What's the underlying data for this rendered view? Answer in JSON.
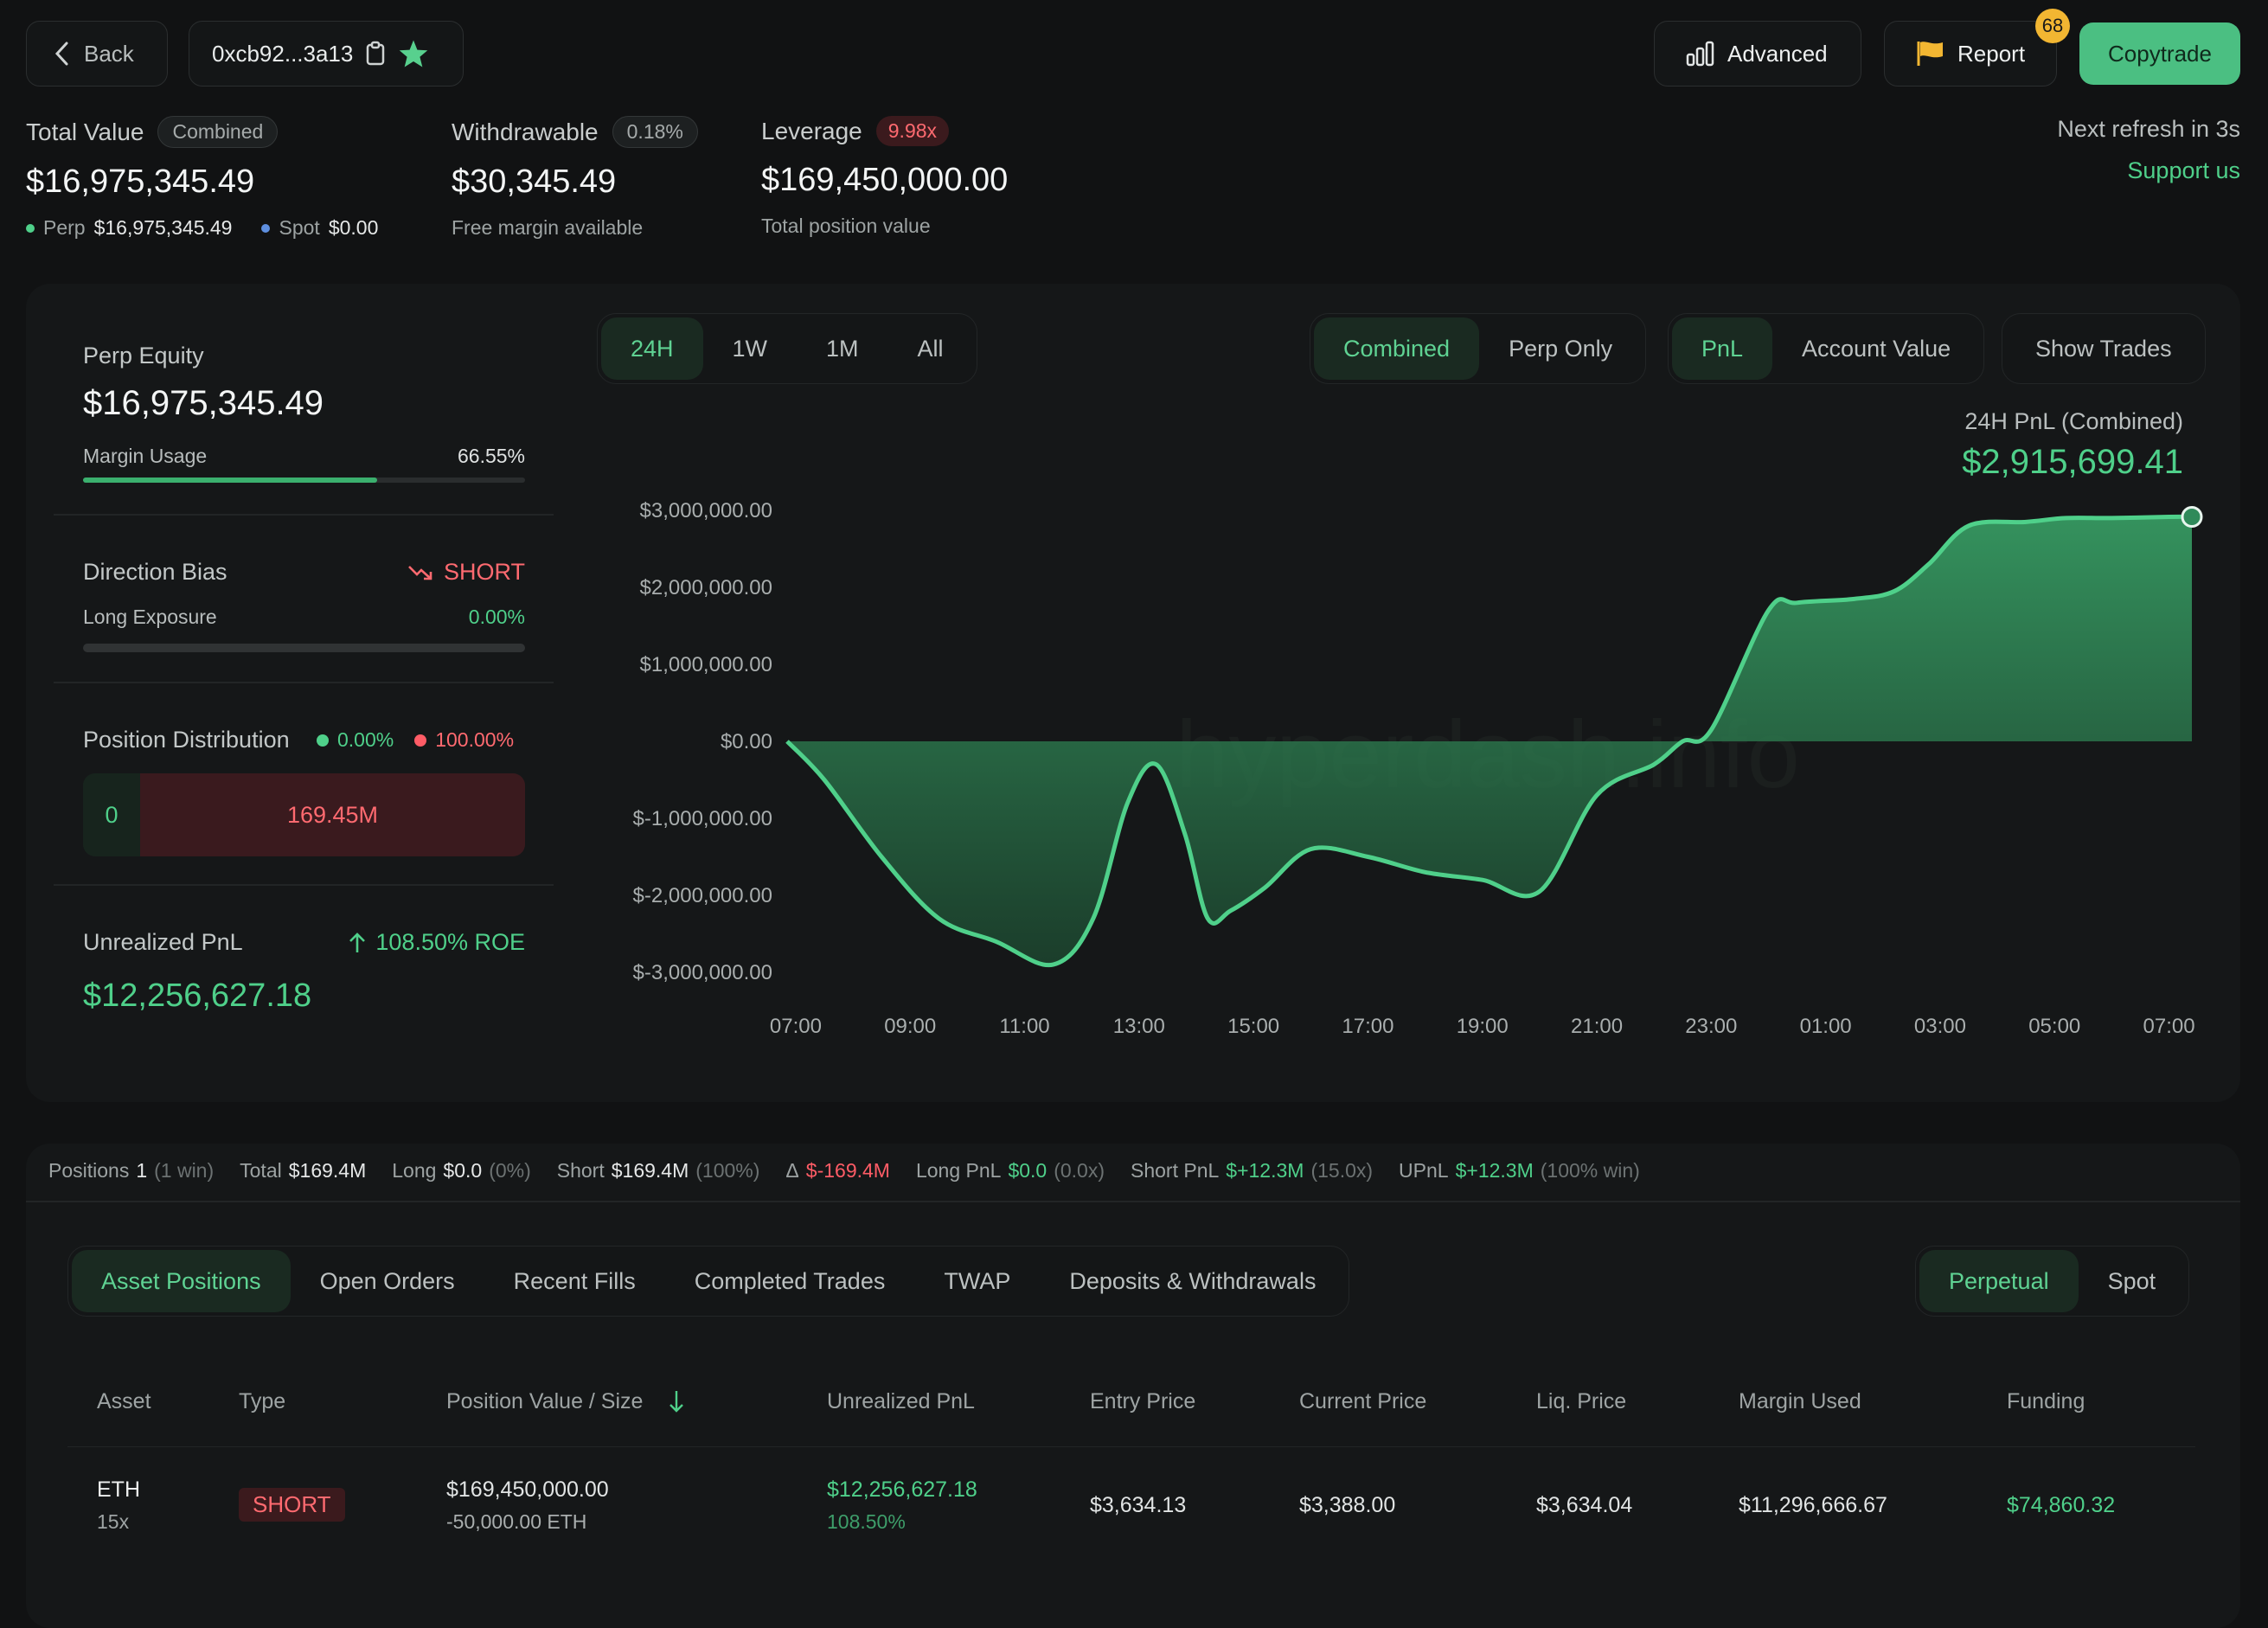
{
  "header": {
    "back_label": "Back",
    "address": "0xcb92...3a13",
    "advanced_label": "Advanced",
    "report_label": "Report",
    "report_badge": "68",
    "copytrade_label": "Copytrade",
    "refresh_text": "Next refresh in 3s",
    "support_label": "Support us"
  },
  "summary": {
    "total_value_label": "Total Value",
    "total_value_pill": "Combined",
    "total_value": "$16,975,345.49",
    "perp_label": "Perp",
    "perp_value": "$16,975,345.49",
    "spot_label": "Spot",
    "spot_value": "$0.00",
    "withdrawable_label": "Withdrawable",
    "withdrawable_pill": "0.18%",
    "withdrawable_value": "$30,345.49",
    "withdrawable_sub": "Free margin available",
    "leverage_label": "Leverage",
    "leverage_pill": "9.98x",
    "leverage_value": "$169,450,000.00",
    "leverage_sub": "Total position value"
  },
  "side": {
    "perp_equity_label": "Perp Equity",
    "perp_equity_value": "$16,975,345.49",
    "margin_usage_label": "Margin Usage",
    "margin_usage_value": "66.55%",
    "margin_usage_fraction": 0.6655,
    "direction_bias_label": "Direction Bias",
    "direction_bias_value": "SHORT",
    "long_exposure_label": "Long Exposure",
    "long_exposure_value": "0.00%",
    "long_exposure_fraction": 0,
    "position_dist_label": "Position Distribution",
    "position_dist_long": "0.00%",
    "position_dist_short": "100.00%",
    "dist_long_amount": "0",
    "dist_short_amount": "169.45M",
    "upnl_label": "Unrealized PnL",
    "upnl_roe": "108.50% ROE",
    "upnl_value": "$12,256,627.18"
  },
  "chart_controls": {
    "ranges": [
      "24H",
      "1W",
      "1M",
      "All"
    ],
    "active_range": "24H",
    "modes": [
      "Combined",
      "Perp Only"
    ],
    "active_mode": "Combined",
    "metrics": [
      "PnL",
      "Account Value"
    ],
    "active_metric": "PnL",
    "show_trades_label": "Show Trades",
    "pnl_caption": "24H PnL (Combined)",
    "pnl_value": "$2,915,699.41",
    "watermark": "hyperdash.info"
  },
  "chart_data": {
    "type": "area",
    "title": "",
    "xlabel": "",
    "ylabel": "",
    "y_tick_labels": [
      "$3,000,000.00",
      "$2,000,000.00",
      "$1,000,000.00",
      "$0.00",
      "$-1,000,000.00",
      "$-2,000,000.00",
      "$-3,000,000.00"
    ],
    "y_ticks": [
      3000000,
      2000000,
      1000000,
      0,
      -1000000,
      -2000000,
      -3000000
    ],
    "ylim": [
      -3000000,
      3000000
    ],
    "x_tick_labels": [
      "07:00",
      "09:00",
      "11:00",
      "13:00",
      "15:00",
      "17:00",
      "19:00",
      "21:00",
      "23:00",
      "01:00",
      "03:00",
      "05:00",
      "07:00"
    ],
    "xlim": [
      -0.15,
      24.4
    ],
    "x_hours": [
      -0.15,
      0.5,
      1.5,
      2.5,
      3.5,
      4.5,
      5.2,
      5.8,
      6.3,
      6.8,
      7.2,
      7.6,
      8.2,
      9.0,
      10.0,
      11.0,
      12.0,
      13.0,
      14.0,
      15.0,
      15.5,
      16.0,
      17.0,
      17.5,
      18.5,
      19.2,
      19.8,
      20.5,
      21.5,
      22.2,
      23.0,
      24.0,
      24.4
    ],
    "values": [
      0,
      -500000,
      -1500000,
      -2300000,
      -2600000,
      -2900000,
      -2300000,
      -800000,
      -300000,
      -1200000,
      -2300000,
      -2200000,
      -1900000,
      -1400000,
      -1500000,
      -1700000,
      -1800000,
      -1950000,
      -700000,
      -300000,
      0,
      150000,
      1700000,
      1800000,
      1850000,
      1950000,
      2300000,
      2800000,
      2850000,
      2900000,
      2900000,
      2915699,
      2915699
    ],
    "grid": false,
    "legend": "none",
    "color": "#4fd08a"
  },
  "stats": {
    "positions_label": "Positions",
    "positions_value": "1",
    "positions_note": "(1 win)",
    "total_label": "Total",
    "total_value": "$169.4M",
    "long_label": "Long",
    "long_value": "$0.0",
    "long_note": "(0%)",
    "short_label": "Short",
    "short_value": "$169.4M",
    "short_note": "(100%)",
    "delta_label": "Δ",
    "delta_value": "$-169.4M",
    "long_pnl_label": "Long PnL",
    "long_pnl_value": "$0.0",
    "long_pnl_note": "(0.0x)",
    "short_pnl_label": "Short PnL",
    "short_pnl_value": "$+12.3M",
    "short_pnl_note": "(15.0x)",
    "upnl_label": "UPnL",
    "upnl_value": "$+12.3M",
    "upnl_note": "(100% win)"
  },
  "tabs": {
    "items": [
      "Asset Positions",
      "Open Orders",
      "Recent Fills",
      "Completed Trades",
      "TWAP",
      "Deposits & Withdrawals"
    ],
    "active": "Asset Positions",
    "market": [
      "Perpetual",
      "Spot"
    ],
    "active_market": "Perpetual"
  },
  "table": {
    "headers": [
      "Asset",
      "Type",
      "Position Value / Size",
      "Unrealized PnL",
      "Entry Price",
      "Current Price",
      "Liq. Price",
      "Margin Used",
      "Funding"
    ],
    "rows": [
      {
        "asset": "ETH",
        "leverage": "15x",
        "type": "SHORT",
        "position_value": "$169,450,000.00",
        "size": "-50,000.00 ETH",
        "upnl": "$12,256,627.18",
        "upnl_pct": "108.50%",
        "entry_price": "$3,634.13",
        "current_price": "$3,388.00",
        "liq_price": "$3,634.04",
        "margin_used": "$11,296,666.67",
        "funding": "$74,860.32"
      }
    ]
  },
  "colors": {
    "accent": "#4fd08a",
    "danger": "#ff5c66",
    "background": "#111213",
    "copytrade": "#4bbf82",
    "badge": "#f2b632"
  }
}
